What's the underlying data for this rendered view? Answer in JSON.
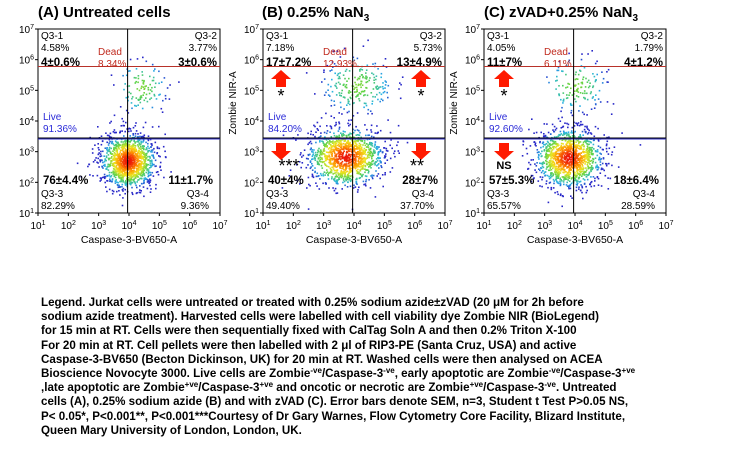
{
  "panels": [
    {
      "title_prefix": "(A) Untreated cells",
      "title_suffix": "",
      "xlabel": "Caspase-3-BV650-A",
      "ylabel": "",
      "q1_name": "Q3-1",
      "q1_pct": "4.58%",
      "q1_stat": "4±0.6%",
      "q1_sig": "",
      "q2_name": "Q3-2",
      "q2_pct": "3.77%",
      "q2_stat": "3±0.6%",
      "q2_sig": "",
      "q3_name": "Q3-3",
      "q3_pct": "82.29%",
      "q3_stat": "76±4.4%",
      "q3_sig": "",
      "q4_name": "Q3-4",
      "q4_pct": "9.36%",
      "q4_stat": "11±1.7%",
      "q4_sig": "",
      "dead_label": "Dead",
      "dead_pct": "8.34%",
      "live_label": "Live",
      "live_pct": "91.36%",
      "arrows": false
    },
    {
      "title_prefix": "(B) 0.25% NaN",
      "title_suffix": "3",
      "xlabel": "Caspase-3-BV650-A",
      "ylabel": "Zombie NIR-A",
      "q1_name": "Q3-1",
      "q1_pct": "7.18%",
      "q1_stat": "17±7.2%",
      "q1_sig": "*",
      "q2_name": "Q3-2",
      "q2_pct": "5.73%",
      "q2_stat": "13±4.9%",
      "q2_sig": "*",
      "q3_name": "Q3-3",
      "q3_pct": "49.40%",
      "q3_stat": "40±4%",
      "q3_sig": "***",
      "q4_name": "Q3-4",
      "q4_pct": "37.70%",
      "q4_stat": "28±7%",
      "q4_sig": "**",
      "dead_label": "Dead",
      "dead_pct": "12.93%",
      "live_label": "Live",
      "live_pct": "84.20%",
      "arrows": true
    },
    {
      "title_prefix": "(C) zVAD+0.25% NaN",
      "title_suffix": "3",
      "xlabel": "Caspase-3-BV650-A",
      "ylabel": "Zombie NIR-A",
      "q1_name": "Q3-1",
      "q1_pct": "4.05%",
      "q1_stat": "11±7%",
      "q1_sig": "*",
      "q2_name": "Q3-2",
      "q2_pct": "1.79%",
      "q2_stat": "4±1.2%",
      "q2_sig": "",
      "q3_name": "Q3-3",
      "q3_pct": "65.57%",
      "q3_stat": "57±5.3%",
      "q3_sig": "NS",
      "q4_name": "Q3-4",
      "q4_pct": "28.59%",
      "q4_stat": "18±6.4%",
      "q4_sig": "",
      "dead_label": "Dead",
      "dead_pct": "6.11%",
      "live_label": "Live",
      "live_pct": "92.60%",
      "arrows": true
    }
  ],
  "chart_data": [
    {
      "type": "scatter",
      "title": "(A) Untreated cells",
      "xlabel": "Caspase-3-BV650-A",
      "ylabel": "",
      "x_scale": "log",
      "y_scale": "log",
      "xlim": [
        10,
        10000000
      ],
      "ylim": [
        10,
        10000000
      ],
      "x_ticks": [
        "10^1",
        "10^2",
        "10^3",
        "10^4",
        "10^5",
        "10^6",
        "10^7"
      ],
      "y_ticks": [
        "10^1",
        "10^2",
        "10^3",
        "10^4",
        "10^5",
        "10^6",
        "10^7"
      ],
      "x_gate": 9000,
      "y_gate": 2800,
      "dead_gate": 600000,
      "populations": [
        {
          "name": "Live",
          "center": [
            9000,
            520
          ],
          "spread": [
            2.6,
            2.6
          ],
          "weight": 0.92
        },
        {
          "name": "Dead",
          "center": [
            25000,
            130000
          ],
          "spread": [
            2.4,
            2.6
          ],
          "weight": 0.08
        }
      ],
      "quadrants": [
        {
          "name": "Q3-1",
          "percent": 4.58,
          "mean": 4,
          "sem": 0.6
        },
        {
          "name": "Q3-2",
          "percent": 3.77,
          "mean": 3,
          "sem": 0.6
        },
        {
          "name": "Q3-3",
          "percent": 82.29,
          "mean": 76,
          "sem": 4.4
        },
        {
          "name": "Q3-4",
          "percent": 9.36,
          "mean": 11,
          "sem": 1.7
        }
      ],
      "gates": [
        {
          "name": "Dead",
          "percent": 8.34
        },
        {
          "name": "Live",
          "percent": 91.36
        }
      ]
    },
    {
      "type": "scatter",
      "title": "(B) 0.25% NaN3",
      "xlabel": "Caspase-3-BV650-A",
      "ylabel": "Zombie NIR-A",
      "x_scale": "log",
      "y_scale": "log",
      "xlim": [
        10,
        10000000
      ],
      "ylim": [
        10,
        10000000
      ],
      "x_ticks": [
        "10^1",
        "10^2",
        "10^3",
        "10^4",
        "10^5",
        "10^6",
        "10^7"
      ],
      "y_ticks": [
        "10^1",
        "10^2",
        "10^3",
        "10^4",
        "10^5",
        "10^6",
        "10^7"
      ],
      "x_gate": 9000,
      "y_gate": 2800,
      "dead_gate": 600000,
      "populations": [
        {
          "name": "Live",
          "center": [
            5000,
            700
          ],
          "spread": [
            3.6,
            2.8
          ],
          "weight": 0.84
        },
        {
          "name": "Dead",
          "center": [
            12000,
            150000
          ],
          "spread": [
            3.4,
            2.8
          ],
          "weight": 0.16
        }
      ],
      "quadrants": [
        {
          "name": "Q3-1",
          "percent": 7.18,
          "mean": 17,
          "sem": 7.2,
          "significance": "*"
        },
        {
          "name": "Q3-2",
          "percent": 5.73,
          "mean": 13,
          "sem": 4.9,
          "significance": "*"
        },
        {
          "name": "Q3-3",
          "percent": 49.4,
          "mean": 40,
          "sem": 4,
          "significance": "***"
        },
        {
          "name": "Q3-4",
          "percent": 37.7,
          "mean": 28,
          "sem": 7,
          "significance": "**"
        }
      ],
      "gates": [
        {
          "name": "Dead",
          "percent": 12.93
        },
        {
          "name": "Live",
          "percent": 84.2
        }
      ]
    },
    {
      "type": "scatter",
      "title": "(C) zVAD+0.25% NaN3",
      "xlabel": "Caspase-3-BV650-A",
      "ylabel": "Zombie NIR-A",
      "x_scale": "log",
      "y_scale": "log",
      "xlim": [
        10,
        10000000
      ],
      "ylim": [
        10,
        10000000
      ],
      "x_ticks": [
        "10^1",
        "10^2",
        "10^3",
        "10^4",
        "10^5",
        "10^6",
        "10^7"
      ],
      "y_ticks": [
        "10^1",
        "10^2",
        "10^3",
        "10^4",
        "10^5",
        "10^6",
        "10^7"
      ],
      "x_gate": 9000,
      "y_gate": 2800,
      "dead_gate": 600000,
      "populations": [
        {
          "name": "Live",
          "center": [
            6000,
            650
          ],
          "spread": [
            3.2,
            2.8
          ],
          "weight": 0.9
        },
        {
          "name": "Dead",
          "center": [
            10000,
            150000
          ],
          "spread": [
            3.0,
            2.6
          ],
          "weight": 0.1
        }
      ],
      "quadrants": [
        {
          "name": "Q3-1",
          "percent": 4.05,
          "mean": 11,
          "sem": 7,
          "significance": "*"
        },
        {
          "name": "Q3-2",
          "percent": 1.79,
          "mean": 4,
          "sem": 1.2
        },
        {
          "name": "Q3-3",
          "percent": 65.57,
          "mean": 57,
          "sem": 5.3,
          "significance": "NS"
        },
        {
          "name": "Q3-4",
          "percent": 28.59,
          "mean": 18,
          "sem": 6.4
        }
      ],
      "gates": [
        {
          "name": "Dead",
          "percent": 6.11
        },
        {
          "name": "Live",
          "percent": 92.6
        }
      ]
    }
  ],
  "legend": {
    "l1": "Legend. Jurkat cells were untreated or treated with 0.25% sodium azide±zVAD (20 μM for 2h before",
    "l2": "sodium azide treatment). Harvested cells were labelled with cell viability dye Zombie NIR (BioLegend)",
    "l3": "for 15 min at RT. Cells were then sequentially fixed with CalTag Soln A and then 0.2% Triton X-100",
    "l4": "For 20 min at RT. Cell pellets were then labelled with 2 μl of RIP3-PE (Santa Cruz, USA) and active",
    "l5": "Caspase-3-BV650 (Becton Dickinson, UK) for 20 min at RT. Washed cells were then analysed on ACEA",
    "l6": "Bioscience Novocyte 3000. Live cells are Zombie",
    "l6_s1": "-ve",
    "l6_b": "/Caspase-3",
    "l6_s2": "-ve",
    "l6_c": ", early apoptotic are Zombie",
    "l6_s3": "-ve",
    "l6_d": "/Caspase-3",
    "l6_s4": "+ve",
    "l7": ",late apoptotic are Zombie",
    "l7_s1": "+ve",
    "l7_b": "/Caspase-3",
    "l7_s2": "+ve",
    "l7_c": " and oncotic or necrotic are Zombie",
    "l7_s3": "+ve",
    "l7_d": "/Caspase-3",
    "l7_s4": "-ve",
    "l7_e": ". Untreated",
    "l8": "cells (A), 0.25% sodium azide (B) and with zVAD (C). Error bars denote SEM, n=3, Student t Test P>0.05 NS,",
    "l9": " P< 0.05*, P<0.001**, P<0.001***Courtesy of Dr Gary Warnes, Flow Cytometry Core Facility, Blizard Institute,",
    "l10": "Queen Mary University of London, London, UK."
  },
  "colors": {
    "dead": "#c02a1e",
    "live": "#2a2ad8",
    "gate_dead": "#b8322a",
    "gate_live": "#3030c8",
    "arrow": "#ff1a00"
  }
}
